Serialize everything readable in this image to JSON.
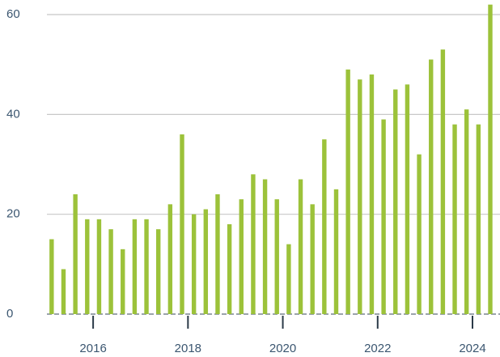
{
  "chart_data": {
    "type": "bar",
    "x": [
      2015.125,
      2015.375,
      2015.625,
      2015.875,
      2016.125,
      2016.375,
      2016.625,
      2016.875,
      2017.125,
      2017.375,
      2017.625,
      2017.875,
      2018.125,
      2018.375,
      2018.625,
      2018.875,
      2019.125,
      2019.375,
      2019.625,
      2019.875,
      2020.125,
      2020.375,
      2020.625,
      2020.875,
      2021.125,
      2021.375,
      2021.625,
      2021.875,
      2022.125,
      2022.375,
      2022.625,
      2022.875,
      2023.125,
      2023.375,
      2023.625,
      2023.875,
      2024.125,
      2024.375
    ],
    "values": [
      15,
      9,
      24,
      19,
      19,
      17,
      13,
      19,
      19,
      17,
      22,
      36,
      20,
      21,
      24,
      18,
      23,
      28,
      27,
      23,
      14,
      27,
      22,
      35,
      25,
      49,
      47,
      48,
      39,
      45,
      46,
      32,
      51,
      53,
      38,
      41,
      38,
      62
    ],
    "color": "#9cc23a",
    "xlim": [
      2015.0,
      2024.58
    ],
    "xticks": [
      2016,
      2018,
      2020,
      2022,
      2024
    ],
    "ylim": [
      0,
      62.5
    ],
    "yticks": [
      0,
      20,
      40,
      60
    ],
    "grid": true
  }
}
